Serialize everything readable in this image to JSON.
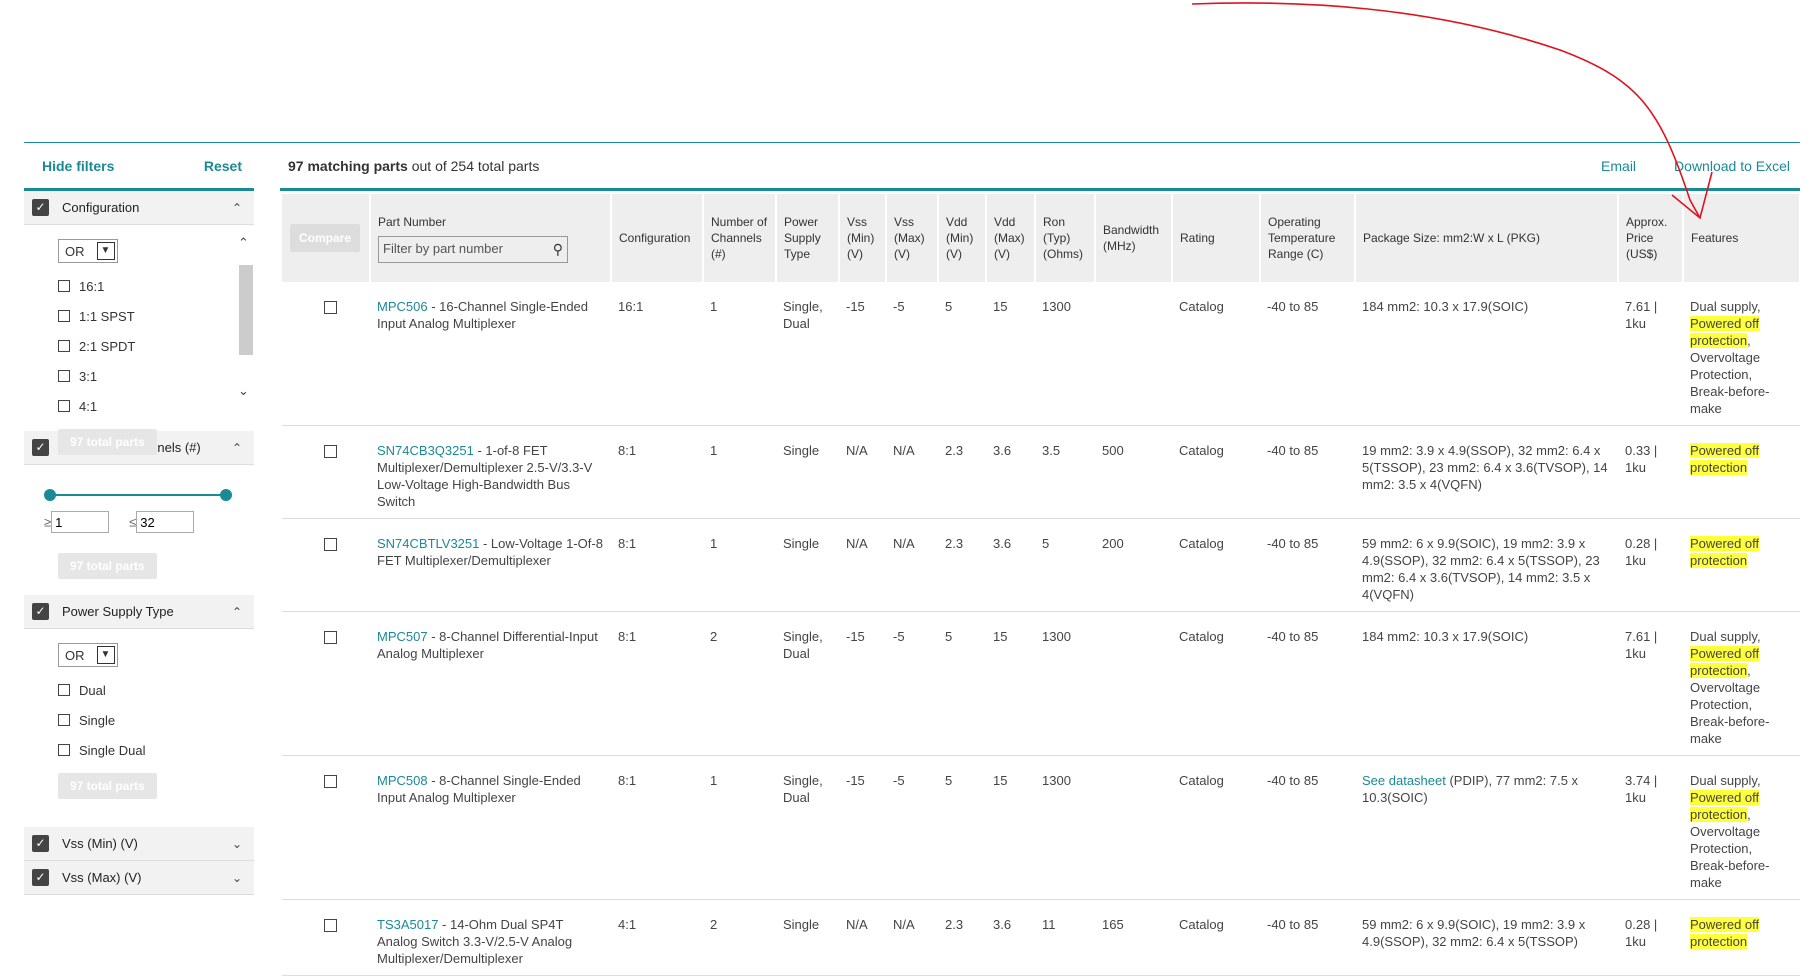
{
  "sidebar": {
    "hide_filters": "Hide filters",
    "reset": "Reset",
    "groups": [
      {
        "title": "Configuration",
        "op": "OR",
        "options": [
          "16:1",
          "1:1 SPST",
          "2:1 SPDT",
          "3:1",
          "4:1"
        ],
        "total": "97 total parts"
      },
      {
        "title": "Number of Channels (#)",
        "min": "1",
        "max": "32",
        "ge": "≥",
        "le": "≤",
        "total": "97 total parts"
      },
      {
        "title": "Power Supply Type",
        "op": "OR",
        "options": [
          "Dual",
          "Single",
          "Single Dual"
        ],
        "total": "97 total parts"
      },
      {
        "title": "Vss (Min) (V)"
      },
      {
        "title": "Vss (Max) (V)"
      }
    ]
  },
  "main": {
    "count_bold": "97 matching parts",
    "count_rest": " out of 254 total parts",
    "email": "Email",
    "download": "Download to Excel",
    "compare": "Compare",
    "filter_placeholder": "Filter by part number",
    "headers": {
      "part": "Part Number",
      "config": "Configuration",
      "channels": "Number of Channels (#)",
      "supply": "Power Supply Type",
      "vssmin": "Vss (Min) (V)",
      "vssmax": "Vss (Max) (V)",
      "vddmin": "Vdd (Min) (V)",
      "vddmax": "Vdd (Max) (V)",
      "ron": "Ron (Typ) (Ohms)",
      "bw": "Bandwidth (MHz)",
      "rating": "Rating",
      "temp": "Operating Temperature Range (C)",
      "pkg": "Package Size: mm2:W x L (PKG)",
      "price": "Approx. Price (US$)",
      "features": "Features"
    },
    "rows": [
      {
        "pn": "MPC506",
        "desc": " - 16-Channel Single-Ended Input Analog Multiplexer",
        "config": "16:1",
        "ch": "1",
        "supply": "Single, Dual",
        "vssmin": "-15",
        "vssmax": "-5",
        "vddmin": "5",
        "vddmax": "15",
        "ron": "1300",
        "bw": "",
        "rating": "Catalog",
        "temp": "-40 to 85",
        "pkg_link": "",
        "pkg": "184 mm2: 10.3 x 17.9(SOIC)",
        "price": "7.61 | 1ku",
        "f1": "Dual supply, ",
        "f_hl": "Powered off protection",
        "f2": ", Overvoltage Protection, Break-before-make"
      },
      {
        "pn": "SN74CB3Q3251",
        "desc": " - 1-of-8 FET Multiplexer/Demultiplexer 2.5-V/3.3-V Low-Voltage High-Bandwidth Bus Switch",
        "config": "8:1",
        "ch": "1",
        "supply": "Single",
        "vssmin": "N/A",
        "vssmax": "N/A",
        "vddmin": "2.3",
        "vddmax": "3.6",
        "ron": "3.5",
        "bw": "500",
        "rating": "Catalog",
        "temp": "-40 to 85",
        "pkg_link": "",
        "pkg": "19 mm2: 3.9 x 4.9(SSOP), 32 mm2: 6.4 x 5(TSSOP), 23 mm2: 6.4 x 3.6(TVSOP), 14 mm2: 3.5 x 4(VQFN)",
        "price": "0.33 | 1ku",
        "f1": "",
        "f_hl": "Powered off protection",
        "f2": ""
      },
      {
        "pn": "SN74CBTLV3251",
        "desc": " - Low-Voltage 1-Of-8 FET Multiplexer/Demultiplexer",
        "config": "8:1",
        "ch": "1",
        "supply": "Single",
        "vssmin": "N/A",
        "vssmax": "N/A",
        "vddmin": "2.3",
        "vddmax": "3.6",
        "ron": "5",
        "bw": "200",
        "rating": "Catalog",
        "temp": "-40 to 85",
        "pkg_link": "",
        "pkg": "59 mm2: 6 x 9.9(SOIC), 19 mm2: 3.9 x 4.9(SSOP), 32 mm2: 6.4 x 5(TSSOP), 23 mm2: 6.4 x 3.6(TVSOP), 14 mm2: 3.5 x 4(VQFN)",
        "price": "0.28 | 1ku",
        "f1": "",
        "f_hl": "Powered off protection",
        "f2": ""
      },
      {
        "pn": "MPC507",
        "desc": " - 8-Channel Differential-Input Analog Multiplexer",
        "config": "8:1",
        "ch": "2",
        "supply": "Single, Dual",
        "vssmin": "-15",
        "vssmax": "-5",
        "vddmin": "5",
        "vddmax": "15",
        "ron": "1300",
        "bw": "",
        "rating": "Catalog",
        "temp": "-40 to 85",
        "pkg_link": "",
        "pkg": "184 mm2: 10.3 x 17.9(SOIC)",
        "price": "7.61 | 1ku",
        "f1": "Dual supply, ",
        "f_hl": "Powered off protection",
        "f2": ", Overvoltage Protection, Break-before-make"
      },
      {
        "pn": "MPC508",
        "desc": " - 8-Channel Single-Ended Input Analog Multiplexer",
        "config": "8:1",
        "ch": "1",
        "supply": "Single, Dual",
        "vssmin": "-15",
        "vssmax": "-5",
        "vddmin": "5",
        "vddmax": "15",
        "ron": "1300",
        "bw": "",
        "rating": "Catalog",
        "temp": "-40 to 85",
        "pkg_link": "See datasheet",
        "pkg": " (PDIP), 77 mm2: 7.5 x 10.3(SOIC)",
        "price": "3.74 | 1ku",
        "f1": "Dual supply, ",
        "f_hl": "Powered off protection",
        "f2": ", Overvoltage Protection, Break-before-make"
      },
      {
        "pn": "TS3A5017",
        "desc": " - 14-Ohm Dual SP4T Analog Switch 3.3-V/2.5-V Analog Multiplexer/Demultiplexer",
        "config": "4:1",
        "ch": "2",
        "supply": "Single",
        "vssmin": "N/A",
        "vssmax": "N/A",
        "vddmin": "2.3",
        "vddmax": "3.6",
        "ron": "11",
        "bw": "165",
        "rating": "Catalog",
        "temp": "-40 to 85",
        "pkg_link": "",
        "pkg": "59 mm2: 6 x 9.9(SOIC), 19 mm2: 3.9 x 4.9(SSOP), 32 mm2: 6.4 x 5(TSSOP)",
        "price": "0.28 | 1ku",
        "f1": "",
        "f_hl": "Powered off protection",
        "f2": ""
      }
    ]
  },
  "annotation_color": "#e0141e",
  "highlight_color": "#ffff3a"
}
